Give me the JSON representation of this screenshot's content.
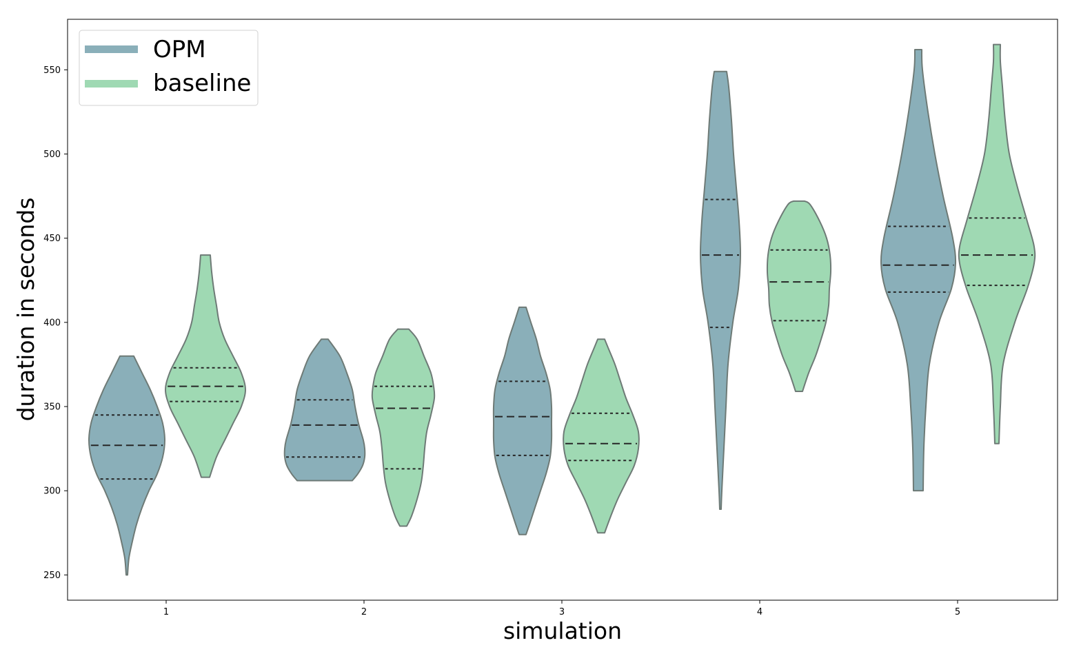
{
  "chart_data": {
    "type": "violin",
    "xlabel": "simulation",
    "ylabel": "duration in seconds",
    "categories": [
      "1",
      "2",
      "3",
      "4",
      "5"
    ],
    "ylim": [
      235,
      580
    ],
    "yticks": [
      250,
      300,
      350,
      400,
      450,
      500,
      550
    ],
    "legend": {
      "placement": "top-left"
    },
    "grid": false,
    "series": [
      {
        "name": "OPM",
        "color": "#8aafb9",
        "edge_color": "#6e7a76",
        "violins": [
          {
            "min": 250,
            "max": 380,
            "q1": 307,
            "median": 327,
            "q3": 345,
            "profile": [
              [
                250,
                1
              ],
              [
                260,
                3
              ],
              [
                270,
                8
              ],
              [
                280,
                14
              ],
              [
                290,
                22
              ],
              [
                300,
                32
              ],
              [
                310,
                44
              ],
              [
                320,
                52
              ],
              [
                330,
                55
              ],
              [
                340,
                52
              ],
              [
                350,
                44
              ],
              [
                360,
                34
              ],
              [
                370,
                22
              ],
              [
                380,
                10
              ]
            ]
          },
          {
            "min": 306,
            "max": 390,
            "q1": 320,
            "median": 339,
            "q3": 354,
            "profile": [
              [
                306,
                40
              ],
              [
                310,
                48
              ],
              [
                315,
                55
              ],
              [
                320,
                58
              ],
              [
                325,
                58
              ],
              [
                330,
                56
              ],
              [
                340,
                49
              ],
              [
                350,
                44
              ],
              [
                360,
                40
              ],
              [
                370,
                32
              ],
              [
                380,
                22
              ],
              [
                390,
                5
              ]
            ]
          },
          {
            "min": 274,
            "max": 409,
            "q1": 321,
            "median": 344,
            "q3": 365,
            "profile": [
              [
                274,
                5
              ],
              [
                280,
                10
              ],
              [
                290,
                18
              ],
              [
                300,
                26
              ],
              [
                310,
                34
              ],
              [
                320,
                40
              ],
              [
                330,
                42
              ],
              [
                340,
                42
              ],
              [
                350,
                42
              ],
              [
                360,
                40
              ],
              [
                370,
                34
              ],
              [
                380,
                26
              ],
              [
                390,
                20
              ],
              [
                400,
                12
              ],
              [
                409,
                5
              ]
            ]
          },
          {
            "min": 289,
            "max": 549,
            "q1": 397,
            "median": 440,
            "q3": 473,
            "profile": [
              [
                289,
                1
              ],
              [
                300,
                2
              ],
              [
                325,
                5
              ],
              [
                350,
                8
              ],
              [
                375,
                11
              ],
              [
                400,
                18
              ],
              [
                420,
                26
              ],
              [
                440,
                29
              ],
              [
                460,
                27
              ],
              [
                480,
                23
              ],
              [
                500,
                19
              ],
              [
                520,
                16
              ],
              [
                540,
                12
              ],
              [
                549,
                9
              ]
            ]
          },
          {
            "min": 300,
            "max": 562,
            "q1": 418,
            "median": 434,
            "q3": 457,
            "profile": [
              [
                300,
                7
              ],
              [
                325,
                8
              ],
              [
                350,
                11
              ],
              [
                375,
                16
              ],
              [
                400,
                30
              ],
              [
                420,
                48
              ],
              [
                435,
                54
              ],
              [
                450,
                50
              ],
              [
                475,
                36
              ],
              [
                500,
                24
              ],
              [
                525,
                14
              ],
              [
                550,
                6
              ],
              [
                562,
                5
              ]
            ]
          }
        ]
      },
      {
        "name": "baseline",
        "color": "#9fd9b3",
        "edge_color": "#6e7a76",
        "violins": [
          {
            "min": 308,
            "max": 440,
            "q1": 353,
            "median": 362,
            "q3": 373,
            "profile": [
              [
                308,
                6
              ],
              [
                320,
                16
              ],
              [
                330,
                28
              ],
              [
                340,
                40
              ],
              [
                350,
                52
              ],
              [
                360,
                58
              ],
              [
                370,
                52
              ],
              [
                380,
                40
              ],
              [
                390,
                28
              ],
              [
                400,
                20
              ],
              [
                410,
                16
              ],
              [
                420,
                12
              ],
              [
                430,
                9
              ],
              [
                440,
                7
              ]
            ]
          },
          {
            "min": 279,
            "max": 396,
            "q1": 313,
            "median": 349,
            "q3": 362,
            "profile": [
              [
                279,
                5
              ],
              [
                285,
                12
              ],
              [
                295,
                20
              ],
              [
                305,
                26
              ],
              [
                315,
                29
              ],
              [
                325,
                31
              ],
              [
                335,
                34
              ],
              [
                345,
                40
              ],
              [
                355,
                45
              ],
              [
                362,
                44
              ],
              [
                370,
                40
              ],
              [
                380,
                30
              ],
              [
                390,
                20
              ],
              [
                396,
                8
              ]
            ]
          },
          {
            "min": 275,
            "max": 390,
            "q1": 318,
            "median": 328,
            "q3": 346,
            "profile": [
              [
                275,
                5
              ],
              [
                285,
                14
              ],
              [
                295,
                24
              ],
              [
                305,
                36
              ],
              [
                315,
                48
              ],
              [
                325,
                54
              ],
              [
                335,
                54
              ],
              [
                345,
                46
              ],
              [
                355,
                36
              ],
              [
                365,
                28
              ],
              [
                375,
                20
              ],
              [
                385,
                10
              ],
              [
                390,
                5
              ]
            ]
          },
          {
            "min": 359,
            "max": 472,
            "q1": 401,
            "median": 424,
            "q3": 443,
            "profile": [
              [
                359,
                5
              ],
              [
                370,
                14
              ],
              [
                380,
                24
              ],
              [
                390,
                32
              ],
              [
                400,
                39
              ],
              [
                410,
                43
              ],
              [
                420,
                44
              ],
              [
                430,
                46
              ],
              [
                440,
                45
              ],
              [
                450,
                40
              ],
              [
                460,
                30
              ],
              [
                470,
                16
              ],
              [
                472,
                8
              ]
            ]
          },
          {
            "min": 328,
            "max": 565,
            "q1": 422,
            "median": 440,
            "q3": 462,
            "profile": [
              [
                328,
                3
              ],
              [
                350,
                5
              ],
              [
                375,
                9
              ],
              [
                400,
                26
              ],
              [
                420,
                44
              ],
              [
                435,
                54
              ],
              [
                445,
                54
              ],
              [
                460,
                44
              ],
              [
                480,
                30
              ],
              [
                500,
                18
              ],
              [
                520,
                12
              ],
              [
                540,
                8
              ],
              [
                555,
                5
              ],
              [
                565,
                5
              ]
            ]
          }
        ]
      }
    ]
  }
}
